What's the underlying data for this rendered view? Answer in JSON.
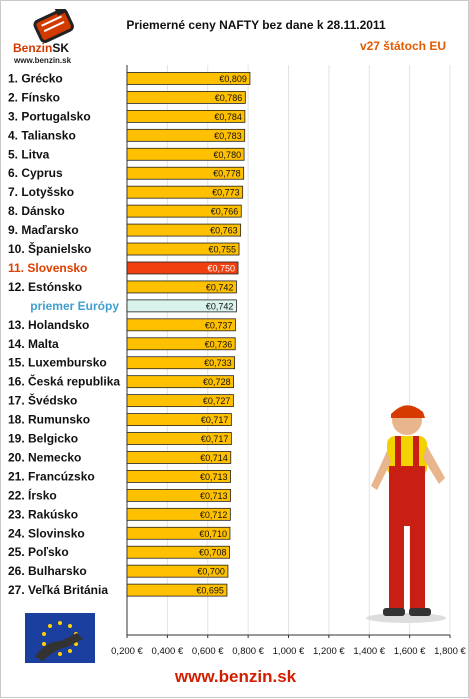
{
  "logo": {
    "name": "Benzin",
    "suffix": "SK",
    "url": "www.benzin.sk"
  },
  "footer": {
    "url": "www.benzin.sk"
  },
  "colors": {
    "bar": "#ffc000",
    "highlight_bar": "#f04010",
    "highlight_text": "#e04000",
    "average_bar": "#d9f2ec",
    "average_text": "#3fa0d0"
  },
  "chart_data": {
    "type": "bar",
    "orientation": "horizontal",
    "title": "Priemerné ceny NAFTY bez dane k 28.11.2011",
    "subtitle": "v27 štátoch EU",
    "categories": [
      "1. Grécko",
      "2. Fínsko",
      "3. Portugalsko",
      "4. Taliansko",
      "5. Litva",
      "6. Cyprus",
      "7. Lotyšsko",
      "8. Dánsko",
      "9. Maďarsko",
      "10. Španielsko",
      "11. Slovensko",
      "12. Estónsko",
      "priemer Európy",
      "13. Holandsko",
      "14. Malta",
      "15. Luxembursko",
      "16. Česká republika",
      "17. Švédsko",
      "18. Rumunsko",
      "19. Belgicko",
      "20. Nemecko",
      "21. Francúzsko",
      "22. Írsko",
      "23. Rakúsko",
      "24. Slovinsko",
      "25. Poľsko",
      "26. Bulharsko",
      "27. Veľká Británia"
    ],
    "values": [
      0.809,
      0.786,
      0.784,
      0.783,
      0.78,
      0.778,
      0.773,
      0.766,
      0.763,
      0.755,
      0.75,
      0.742,
      0.742,
      0.737,
      0.736,
      0.733,
      0.728,
      0.727,
      0.717,
      0.717,
      0.714,
      0.713,
      0.713,
      0.712,
      0.71,
      0.708,
      0.7,
      0.695
    ],
    "value_labels": [
      "€0,809",
      "€0,786",
      "€0,784",
      "€0,783",
      "€0,780",
      "€0,778",
      "€0,773",
      "€0,766",
      "€0,763",
      "€0,755",
      "€0,750",
      "€0,742",
      "€0,742",
      "€0,737",
      "€0,736",
      "€0,733",
      "€0,728",
      "€0,727",
      "€0,717",
      "€0,717",
      "€0,714",
      "€0,713",
      "€0,713",
      "€0,712",
      "€0,710",
      "€0,708",
      "€0,700",
      "€0,695"
    ],
    "highlight": [
      "11. Slovensko"
    ],
    "average": [
      "priemer Európy"
    ],
    "xlim": [
      0.2,
      1.8
    ],
    "x_ticks": [
      0.2,
      0.4,
      0.6,
      0.8,
      1.0,
      1.2,
      1.4,
      1.6,
      1.8
    ],
    "x_tick_labels": [
      "0,200 €",
      "0,400 €",
      "0,600 €",
      "0,800 €",
      "1,000 €",
      "1,200 €",
      "1,400 €",
      "1,600 €",
      "1,800 €"
    ],
    "grid": true
  }
}
